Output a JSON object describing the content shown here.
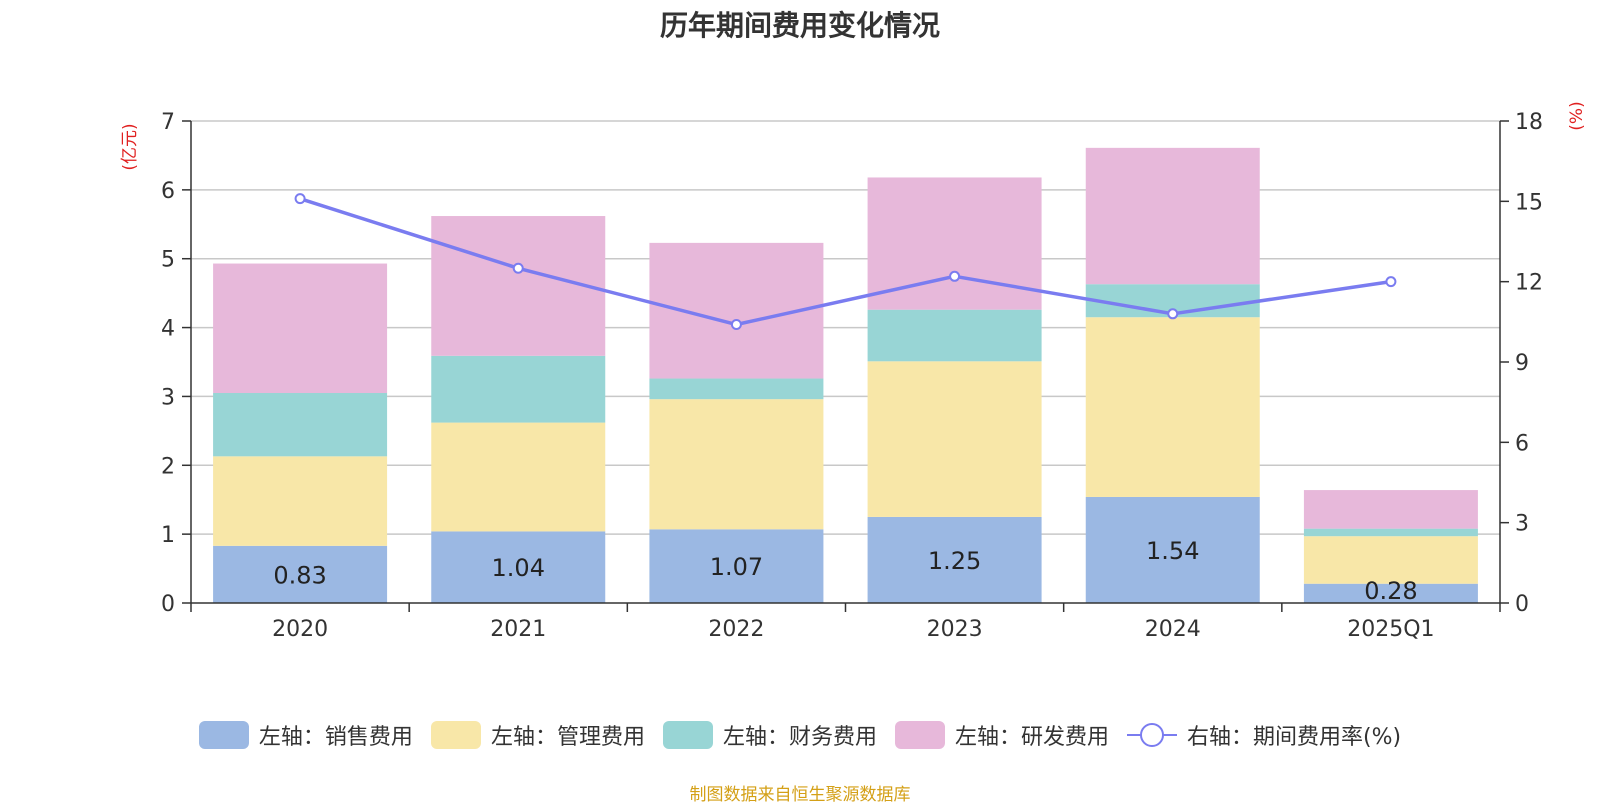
{
  "title": "历年期间费用变化情况",
  "source": "制图数据来自恒生聚源数据库",
  "colors": {
    "sales": "#9bb8e3",
    "admin": "#f8e7a8",
    "finance": "#98d5d5",
    "rd": "#e7b8da",
    "rate": "#7a7cf0",
    "axis_unit": "#e02020",
    "source": "#d4a017",
    "grid": "#c8c8c8",
    "text": "#333333"
  },
  "chart_data": {
    "type": "bar",
    "stacked": true,
    "categories": [
      "2020",
      "2021",
      "2022",
      "2023",
      "2024",
      "2025Q1"
    ],
    "left_axis": {
      "unit": "(亿元)",
      "ylim": [
        0,
        7
      ],
      "ticks": [
        0,
        1,
        2,
        3,
        4,
        5,
        6,
        7
      ]
    },
    "right_axis": {
      "unit": "(%)",
      "ylim": [
        0,
        18
      ],
      "ticks": [
        0,
        3,
        6,
        9,
        12,
        15,
        18
      ]
    },
    "series": [
      {
        "name": "左轴：销售费用",
        "key": "sales",
        "values": [
          0.83,
          1.04,
          1.07,
          1.25,
          1.54,
          0.28
        ],
        "labels": [
          "0.83",
          "1.04",
          "1.07",
          "1.25",
          "1.54",
          "0.28"
        ]
      },
      {
        "name": "左轴：管理费用",
        "key": "admin",
        "values": [
          1.3,
          1.58,
          1.89,
          2.26,
          2.61,
          0.69
        ]
      },
      {
        "name": "左轴：财务费用",
        "key": "finance",
        "values": [
          0.92,
          0.97,
          0.3,
          0.75,
          0.48,
          0.11
        ]
      },
      {
        "name": "左轴：研发费用",
        "key": "rd",
        "values": [
          1.88,
          2.03,
          1.97,
          1.92,
          1.98,
          0.56
        ]
      }
    ],
    "line": {
      "name": "右轴：期间费用率(%)",
      "key": "rate",
      "values": [
        15.1,
        12.5,
        10.4,
        12.2,
        10.8,
        12.0
      ]
    },
    "grid": true,
    "legend_position": "bottom"
  }
}
